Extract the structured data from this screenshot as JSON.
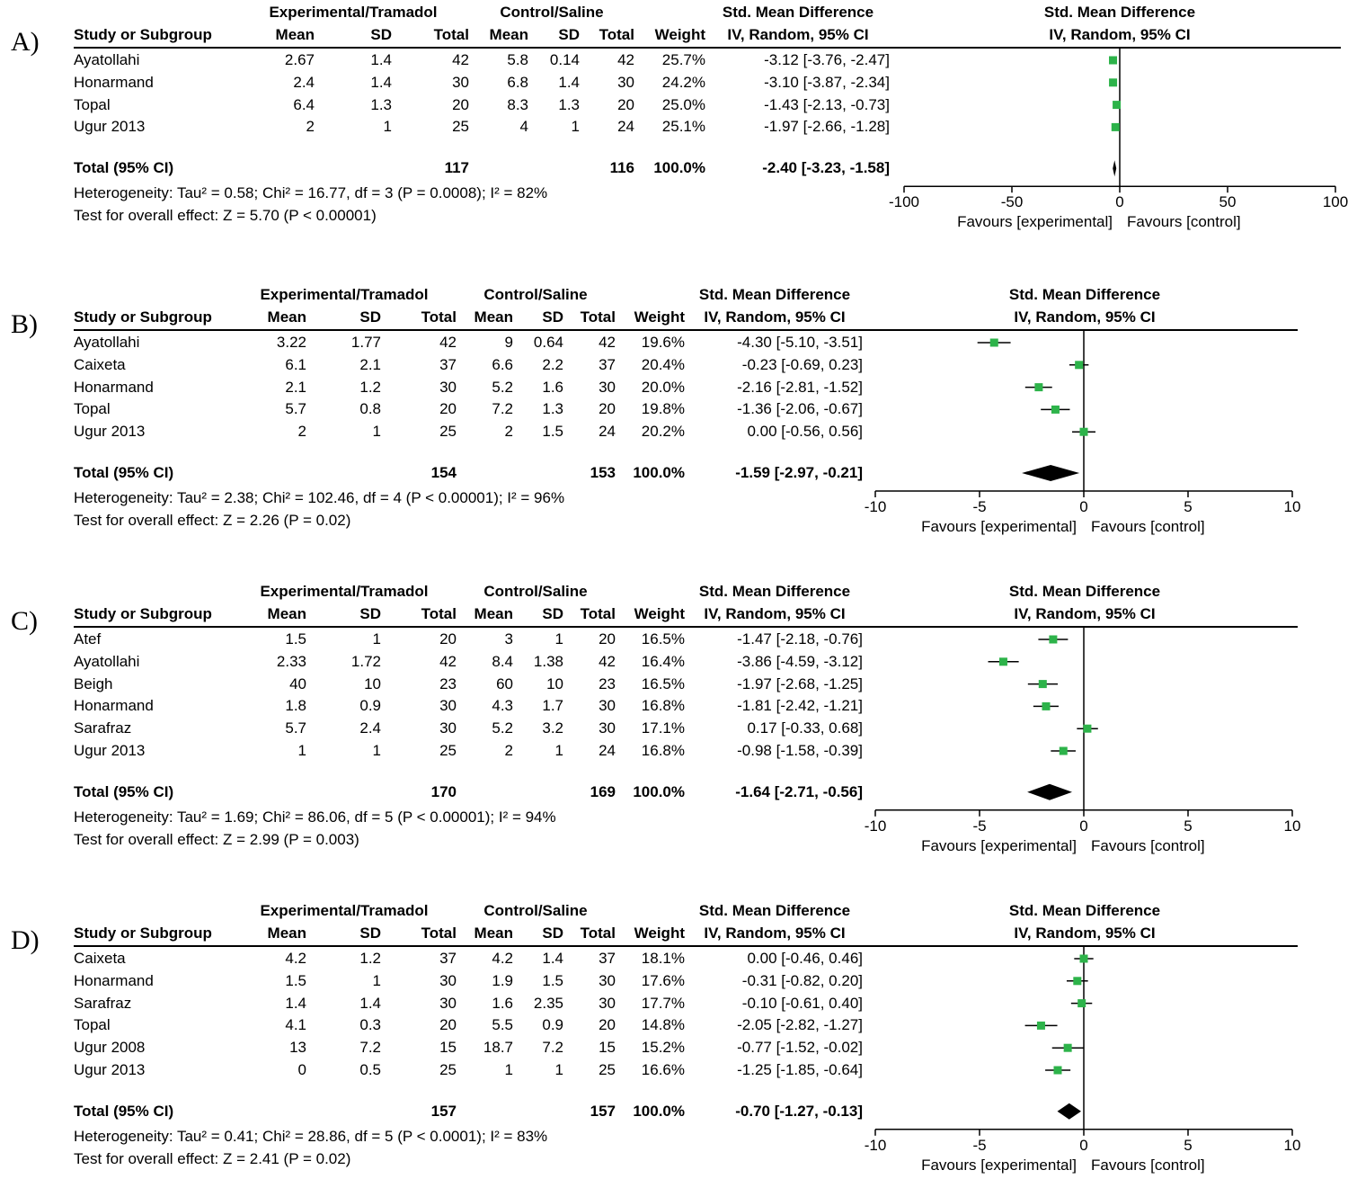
{
  "chart_data": [
    {
      "type": "forest",
      "panel_label": "A)",
      "headers": {
        "exp_group": "Experimental/Tramadol",
        "ctl_group": "Control/Saline",
        "effect": "Std. Mean Difference",
        "method": "IV, Random, 95% CI",
        "study": "Study or Subgroup",
        "mean": "Mean",
        "sd": "SD",
        "total": "Total",
        "weight": "Weight"
      },
      "studies": [
        {
          "name": "Ayatollahi",
          "exp_mean": "2.67",
          "exp_sd": "1.4",
          "exp_total": "42",
          "ctl_mean": "5.8",
          "ctl_sd": "0.14",
          "ctl_total": "42",
          "weight": "25.7%",
          "ci_text": "-3.12 [-3.76, -2.47]",
          "est": -3.12,
          "lo": -3.76,
          "hi": -2.47
        },
        {
          "name": "Honarmand",
          "exp_mean": "2.4",
          "exp_sd": "1.4",
          "exp_total": "30",
          "ctl_mean": "6.8",
          "ctl_sd": "1.4",
          "ctl_total": "30",
          "weight": "24.2%",
          "ci_text": "-3.10 [-3.87, -2.34]",
          "est": -3.1,
          "lo": -3.87,
          "hi": -2.34
        },
        {
          "name": "Topal",
          "exp_mean": "6.4",
          "exp_sd": "1.3",
          "exp_total": "20",
          "ctl_mean": "8.3",
          "ctl_sd": "1.3",
          "ctl_total": "20",
          "weight": "25.0%",
          "ci_text": "-1.43 [-2.13, -0.73]",
          "est": -1.43,
          "lo": -2.13,
          "hi": -0.73
        },
        {
          "name": "Ugur 2013",
          "exp_mean": "2",
          "exp_sd": "1",
          "exp_total": "25",
          "ctl_mean": "4",
          "ctl_sd": "1",
          "ctl_total": "24",
          "weight": "25.1%",
          "ci_text": "-1.97 [-2.66, -1.28]",
          "est": -1.97,
          "lo": -2.66,
          "hi": -1.28
        }
      ],
      "total": {
        "label": "Total (95% CI)",
        "exp_total": "117",
        "ctl_total": "116",
        "weight": "100.0%",
        "ci_text": "-2.40 [-3.23, -1.58]",
        "est": -2.4,
        "lo": -3.23,
        "hi": -1.58
      },
      "heterogeneity": "Heterogeneity: Tau² = 0.58; Chi² = 16.77, df = 3 (P = 0.0008); I² = 82%",
      "overall": "Test for overall effect: Z = 5.70 (P < 0.00001)",
      "axis": {
        "min": -100,
        "max": 100,
        "ticks": [
          -100,
          -50,
          0,
          50,
          100
        ],
        "tick_labels": [
          "-100",
          "-50",
          "0",
          "50",
          "100"
        ]
      },
      "favours_left": "Favours [experimental]",
      "favours_right": "Favours [control]"
    },
    {
      "type": "forest",
      "panel_label": "B)",
      "headers": {
        "exp_group": "Experimental/Tramadol",
        "ctl_group": "Control/Saline",
        "effect": "Std. Mean Difference",
        "method": "IV, Random, 95% CI",
        "study": "Study or Subgroup",
        "mean": "Mean",
        "sd": "SD",
        "total": "Total",
        "weight": "Weight"
      },
      "studies": [
        {
          "name": "Ayatollahi",
          "exp_mean": "3.22",
          "exp_sd": "1.77",
          "exp_total": "42",
          "ctl_mean": "9",
          "ctl_sd": "0.64",
          "ctl_total": "42",
          "weight": "19.6%",
          "ci_text": "-4.30 [-5.10, -3.51]",
          "est": -4.3,
          "lo": -5.1,
          "hi": -3.51
        },
        {
          "name": "Caixeta",
          "exp_mean": "6.1",
          "exp_sd": "2.1",
          "exp_total": "37",
          "ctl_mean": "6.6",
          "ctl_sd": "2.2",
          "ctl_total": "37",
          "weight": "20.4%",
          "ci_text": "-0.23 [-0.69, 0.23]",
          "est": -0.23,
          "lo": -0.69,
          "hi": 0.23
        },
        {
          "name": "Honarmand",
          "exp_mean": "2.1",
          "exp_sd": "1.2",
          "exp_total": "30",
          "ctl_mean": "5.2",
          "ctl_sd": "1.6",
          "ctl_total": "30",
          "weight": "20.0%",
          "ci_text": "-2.16 [-2.81, -1.52]",
          "est": -2.16,
          "lo": -2.81,
          "hi": -1.52
        },
        {
          "name": "Topal",
          "exp_mean": "5.7",
          "exp_sd": "0.8",
          "exp_total": "20",
          "ctl_mean": "7.2",
          "ctl_sd": "1.3",
          "ctl_total": "20",
          "weight": "19.8%",
          "ci_text": "-1.36 [-2.06, -0.67]",
          "est": -1.36,
          "lo": -2.06,
          "hi": -0.67
        },
        {
          "name": "Ugur 2013",
          "exp_mean": "2",
          "exp_sd": "1",
          "exp_total": "25",
          "ctl_mean": "2",
          "ctl_sd": "1.5",
          "ctl_total": "24",
          "weight": "20.2%",
          "ci_text": "0.00 [-0.56, 0.56]",
          "est": 0.0,
          "lo": -0.56,
          "hi": 0.56
        }
      ],
      "total": {
        "label": "Total (95% CI)",
        "exp_total": "154",
        "ctl_total": "153",
        "weight": "100.0%",
        "ci_text": "-1.59 [-2.97, -0.21]",
        "est": -1.59,
        "lo": -2.97,
        "hi": -0.21
      },
      "heterogeneity": "Heterogeneity: Tau² = 2.38; Chi² = 102.46, df = 4 (P < 0.00001); I² = 96%",
      "overall": "Test for overall effect: Z = 2.26 (P = 0.02)",
      "axis": {
        "min": -10,
        "max": 10,
        "ticks": [
          -10,
          -5,
          0,
          5,
          10
        ],
        "tick_labels": [
          "-10",
          "-5",
          "0",
          "5",
          "10"
        ]
      },
      "favours_left": "Favours [experimental]",
      "favours_right": "Favours [control]"
    },
    {
      "type": "forest",
      "panel_label": "C)",
      "headers": {
        "exp_group": "Experimental/Tramadol",
        "ctl_group": "Control/Saline",
        "effect": "Std. Mean Difference",
        "method": "IV, Random, 95% CI",
        "study": "Study or Subgroup",
        "mean": "Mean",
        "sd": "SD",
        "total": "Total",
        "weight": "Weight"
      },
      "studies": [
        {
          "name": "Atef",
          "exp_mean": "1.5",
          "exp_sd": "1",
          "exp_total": "20",
          "ctl_mean": "3",
          "ctl_sd": "1",
          "ctl_total": "20",
          "weight": "16.5%",
          "ci_text": "-1.47 [-2.18, -0.76]",
          "est": -1.47,
          "lo": -2.18,
          "hi": -0.76
        },
        {
          "name": "Ayatollahi",
          "exp_mean": "2.33",
          "exp_sd": "1.72",
          "exp_total": "42",
          "ctl_mean": "8.4",
          "ctl_sd": "1.38",
          "ctl_total": "42",
          "weight": "16.4%",
          "ci_text": "-3.86 [-4.59, -3.12]",
          "est": -3.86,
          "lo": -4.59,
          "hi": -3.12
        },
        {
          "name": "Beigh",
          "exp_mean": "40",
          "exp_sd": "10",
          "exp_total": "23",
          "ctl_mean": "60",
          "ctl_sd": "10",
          "ctl_total": "23",
          "weight": "16.5%",
          "ci_text": "-1.97 [-2.68, -1.25]",
          "est": -1.97,
          "lo": -2.68,
          "hi": -1.25
        },
        {
          "name": "Honarmand",
          "exp_mean": "1.8",
          "exp_sd": "0.9",
          "exp_total": "30",
          "ctl_mean": "4.3",
          "ctl_sd": "1.7",
          "ctl_total": "30",
          "weight": "16.8%",
          "ci_text": "-1.81 [-2.42, -1.21]",
          "est": -1.81,
          "lo": -2.42,
          "hi": -1.21
        },
        {
          "name": "Sarafraz",
          "exp_mean": "5.7",
          "exp_sd": "2.4",
          "exp_total": "30",
          "ctl_mean": "5.2",
          "ctl_sd": "3.2",
          "ctl_total": "30",
          "weight": "17.1%",
          "ci_text": "0.17 [-0.33, 0.68]",
          "est": 0.17,
          "lo": -0.33,
          "hi": 0.68
        },
        {
          "name": "Ugur 2013",
          "exp_mean": "1",
          "exp_sd": "1",
          "exp_total": "25",
          "ctl_mean": "2",
          "ctl_sd": "1",
          "ctl_total": "24",
          "weight": "16.8%",
          "ci_text": "-0.98 [-1.58, -0.39]",
          "est": -0.98,
          "lo": -1.58,
          "hi": -0.39
        }
      ],
      "total": {
        "label": "Total (95% CI)",
        "exp_total": "170",
        "ctl_total": "169",
        "weight": "100.0%",
        "ci_text": "-1.64 [-2.71, -0.56]",
        "est": -1.64,
        "lo": -2.71,
        "hi": -0.56
      },
      "heterogeneity": "Heterogeneity: Tau² = 1.69; Chi² = 86.06, df = 5 (P < 0.00001); I² = 94%",
      "overall": "Test for overall effect: Z = 2.99 (P = 0.003)",
      "axis": {
        "min": -10,
        "max": 10,
        "ticks": [
          -10,
          -5,
          0,
          5,
          10
        ],
        "tick_labels": [
          "-10",
          "-5",
          "0",
          "5",
          "10"
        ]
      },
      "favours_left": "Favours [experimental]",
      "favours_right": "Favours [control]"
    },
    {
      "type": "forest",
      "panel_label": "D)",
      "headers": {
        "exp_group": "Experimental/Tramadol",
        "ctl_group": "Control/Saline",
        "effect": "Std. Mean Difference",
        "method": "IV, Random, 95% CI",
        "study": "Study or Subgroup",
        "mean": "Mean",
        "sd": "SD",
        "total": "Total",
        "weight": "Weight"
      },
      "studies": [
        {
          "name": "Caixeta",
          "exp_mean": "4.2",
          "exp_sd": "1.2",
          "exp_total": "37",
          "ctl_mean": "4.2",
          "ctl_sd": "1.4",
          "ctl_total": "37",
          "weight": "18.1%",
          "ci_text": "0.00 [-0.46, 0.46]",
          "est": 0.0,
          "lo": -0.46,
          "hi": 0.46
        },
        {
          "name": "Honarmand",
          "exp_mean": "1.5",
          "exp_sd": "1",
          "exp_total": "30",
          "ctl_mean": "1.9",
          "ctl_sd": "1.5",
          "ctl_total": "30",
          "weight": "17.6%",
          "ci_text": "-0.31 [-0.82, 0.20]",
          "est": -0.31,
          "lo": -0.82,
          "hi": 0.2
        },
        {
          "name": "Sarafraz",
          "exp_mean": "1.4",
          "exp_sd": "1.4",
          "exp_total": "30",
          "ctl_mean": "1.6",
          "ctl_sd": "2.35",
          "ctl_total": "30",
          "weight": "17.7%",
          "ci_text": "-0.10 [-0.61, 0.40]",
          "est": -0.1,
          "lo": -0.61,
          "hi": 0.4
        },
        {
          "name": "Topal",
          "exp_mean": "4.1",
          "exp_sd": "0.3",
          "exp_total": "20",
          "ctl_mean": "5.5",
          "ctl_sd": "0.9",
          "ctl_total": "20",
          "weight": "14.8%",
          "ci_text": "-2.05 [-2.82, -1.27]",
          "est": -2.05,
          "lo": -2.82,
          "hi": -1.27
        },
        {
          "name": "Ugur 2008",
          "exp_mean": "13",
          "exp_sd": "7.2",
          "exp_total": "15",
          "ctl_mean": "18.7",
          "ctl_sd": "7.2",
          "ctl_total": "15",
          "weight": "15.2%",
          "ci_text": "-0.77 [-1.52, -0.02]",
          "est": -0.77,
          "lo": -1.52,
          "hi": -0.02
        },
        {
          "name": "Ugur 2013",
          "exp_mean": "0",
          "exp_sd": "0.5",
          "exp_total": "25",
          "ctl_mean": "1",
          "ctl_sd": "1",
          "ctl_total": "25",
          "weight": "16.6%",
          "ci_text": "-1.25 [-1.85, -0.64]",
          "est": -1.25,
          "lo": -1.85,
          "hi": -0.64
        }
      ],
      "total": {
        "label": "Total (95% CI)",
        "exp_total": "157",
        "ctl_total": "157",
        "weight": "100.0%",
        "ci_text": "-0.70 [-1.27, -0.13]",
        "est": -0.7,
        "lo": -1.27,
        "hi": -0.13
      },
      "heterogeneity": "Heterogeneity: Tau² = 0.41; Chi² = 28.86, df = 5 (P < 0.0001); I² = 83%",
      "overall": "Test for overall effect: Z = 2.41 (P = 0.02)",
      "axis": {
        "min": -10,
        "max": 10,
        "ticks": [
          -10,
          -5,
          0,
          5,
          10
        ],
        "tick_labels": [
          "-10",
          "-5",
          "0",
          "5",
          "10"
        ]
      },
      "favours_left": "Favours [experimental]",
      "favours_right": "Favours [control]"
    }
  ],
  "colors": {
    "study_marker": "#2db34a",
    "pooled_diamond": "#000000",
    "text": "#000000"
  }
}
